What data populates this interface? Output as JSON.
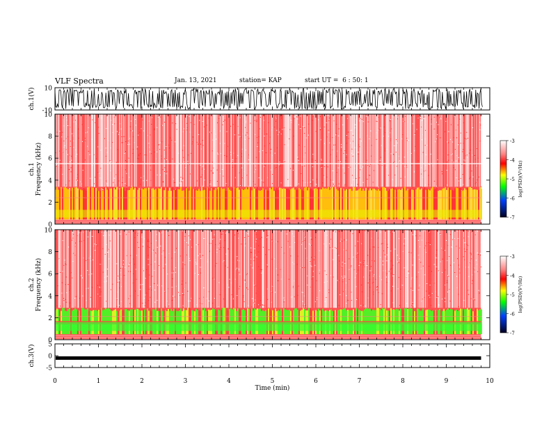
{
  "header": {
    "title": "VLF Spectra",
    "date": "Jan. 13, 2021",
    "station": "station= KAP",
    "start_ut": "start UT =  6 : 50: 1"
  },
  "chart_data": [
    {
      "type": "line",
      "panel": "ch1-waveform",
      "ylabel": "ch.1(V)",
      "ylim": [
        -10,
        10
      ],
      "yticks": [
        "10",
        "-10"
      ],
      "note_series": "dense oscillating waveform filling approx. -8..+8 V",
      "xlim": [
        0,
        10
      ]
    },
    {
      "type": "heatmap",
      "panel": "ch1-spectrogram",
      "ylabel": "ch.1\nFrequency (kHz)",
      "ylabel_line1": "ch.1",
      "ylabel_line2": "Frequency (kHz)",
      "ylim": [
        0,
        10
      ],
      "yticks": [
        "0",
        "2",
        "4",
        "6",
        "8",
        "10"
      ],
      "xlim": [
        0,
        9.8
      ],
      "colorbar": {
        "label": "log(PSD)(V²/Hz)",
        "range": [
          -7,
          -3
        ],
        "ticks": [
          "-3",
          "-4",
          "-5",
          "-6",
          "-7"
        ]
      },
      "bands": [
        {
          "from_khz": 0,
          "to_khz": 3.4,
          "level": "yellow-red mix"
        },
        {
          "from_khz": 3.4,
          "to_khz": 10,
          "level": "red"
        },
        {
          "at_khz": 5.5,
          "level": "white line"
        }
      ]
    },
    {
      "type": "heatmap",
      "panel": "ch2-spectrogram",
      "ylabel_line1": "ch.2",
      "ylabel_line2": "Frequency (kHz)",
      "ylim": [
        0,
        10
      ],
      "yticks": [
        "0",
        "2",
        "4",
        "6",
        "8",
        "10"
      ],
      "xlim": [
        0,
        9.8
      ],
      "colorbar": {
        "label": "log(PSD)(V²/Hz)",
        "range": [
          -7,
          -3
        ],
        "ticks": [
          "-3",
          "-4",
          "-5",
          "-6",
          "-7"
        ]
      },
      "bands": [
        {
          "from_khz": 0,
          "to_khz": 2.9,
          "level": "green-yellow"
        },
        {
          "from_khz": 2.9,
          "to_khz": 10,
          "level": "red"
        }
      ]
    },
    {
      "type": "line",
      "panel": "ch3-waveform",
      "ylabel": "ch.3(V)",
      "ylim": [
        -5,
        5
      ],
      "yticks": [
        "5",
        "0",
        "-5"
      ],
      "note_series": "flat thick trace near -1 V",
      "xlabel": "Time (min)",
      "xlim": [
        0,
        10
      ],
      "xticks": [
        "0",
        "1",
        "2",
        "3",
        "4",
        "5",
        "6",
        "7",
        "8",
        "9",
        "10"
      ]
    }
  ],
  "colors": {
    "background": "#ffffff",
    "axes": "#000000",
    "spectrogram_high": "#ff2020",
    "spectrogram_mid": "#ffff00",
    "spectrogram_low": "#00ff00"
  }
}
